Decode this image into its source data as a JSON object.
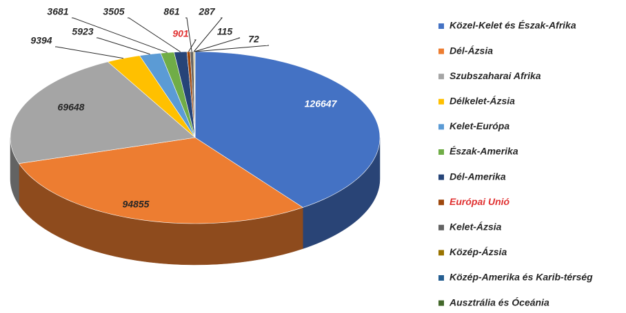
{
  "chart_data": {
    "type": "pie3d",
    "categories": [
      "Közel-Kelet és Észak-Afrika",
      "Dél-Ázsia",
      "Szubszaharai Afrika",
      "Délkelet-Ázsia",
      "Kelet-Európa",
      "Észak-Amerika",
      "Dél-Amerika",
      "Európai Unió",
      "Kelet-Ázsia",
      "Közép-Ázsia",
      "Közép-Amerika és Karib-térség",
      "Ausztrália és Óceánia"
    ],
    "values": [
      126647,
      94855,
      69648,
      9394,
      5923,
      3681,
      3505,
      901,
      861,
      287,
      115,
      72
    ],
    "colors": [
      "#4472c4",
      "#ed7d31",
      "#a5a5a5",
      "#ffc000",
      "#5b9bd5",
      "#70ad47",
      "#264478",
      "#9e480e",
      "#636363",
      "#997300",
      "#255e91",
      "#43682b"
    ],
    "highlight_category": "Európai Unió",
    "highlight_color": "#e03030",
    "legend": "right"
  }
}
